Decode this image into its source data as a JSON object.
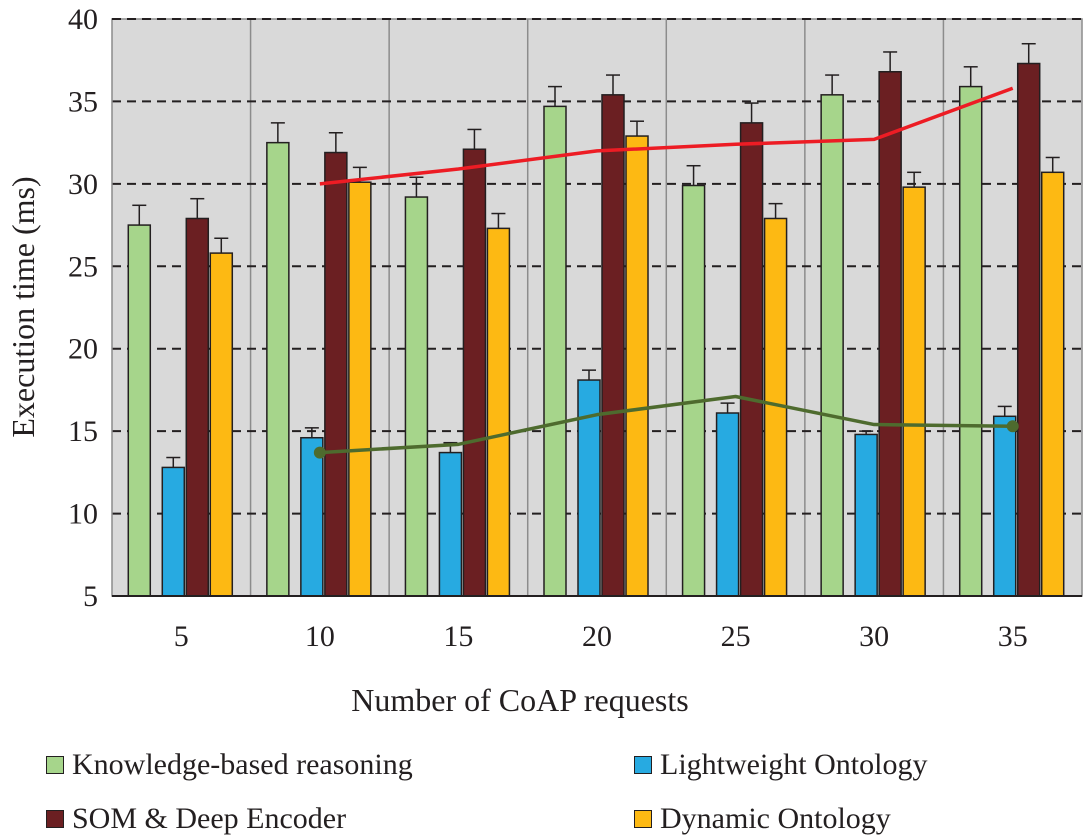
{
  "chart_data": {
    "type": "bar",
    "xlabel": "Number of CoAP requests",
    "ylabel": "Execution time (ms)",
    "ylim": [
      5,
      40
    ],
    "yticks": [
      5,
      10,
      15,
      20,
      25,
      30,
      35,
      40
    ],
    "categories": [
      "5",
      "10",
      "15",
      "20",
      "25",
      "30",
      "35"
    ],
    "grid": true,
    "legend_position": "bottom",
    "series": [
      {
        "name": "Knowledge-based reasoning",
        "color": "#a6d58b",
        "values": [
          27.5,
          32.5,
          29.2,
          34.7,
          29.9,
          35.4,
          35.9
        ],
        "errors": [
          1.2,
          1.2,
          1.2,
          1.2,
          1.2,
          1.2,
          1.2
        ]
      },
      {
        "name": "Lightweight Ontology",
        "color": "#27aae1",
        "values": [
          12.8,
          14.6,
          13.7,
          18.1,
          16.1,
          14.8,
          15.9
        ],
        "errors": [
          0.6,
          0.6,
          0.6,
          0.6,
          0.6,
          0.2,
          0.6
        ]
      },
      {
        "name": "SOM & Deep Encoder",
        "color": "#6b1f22",
        "values": [
          27.9,
          31.9,
          32.1,
          35.4,
          33.7,
          36.8,
          37.3
        ],
        "errors": [
          1.2,
          1.2,
          1.2,
          1.2,
          1.2,
          1.2,
          1.2
        ]
      },
      {
        "name": "Dynamic Ontology",
        "color": "#fdb913",
        "values": [
          25.8,
          30.1,
          27.3,
          32.9,
          27.9,
          29.8,
          30.7
        ],
        "errors": [
          0.9,
          0.9,
          0.9,
          0.9,
          0.9,
          0.9,
          0.9
        ]
      }
    ],
    "lines": [
      {
        "name": "red-trend-line",
        "color": "#ed1c24",
        "x_index": [
          1,
          2,
          3,
          4,
          5,
          6
        ],
        "values": [
          30.0,
          30.9,
          32.0,
          32.4,
          32.7,
          35.8
        ]
      },
      {
        "name": "green-trend-line",
        "color": "#4e6b2e",
        "x_index": [
          1,
          2,
          3,
          4,
          5,
          6
        ],
        "values": [
          13.7,
          14.2,
          16.0,
          17.1,
          15.4,
          15.3
        ],
        "markers": true
      }
    ]
  },
  "legend": {
    "items": [
      {
        "label": "Knowledge-based reasoning",
        "color": "#a6d58b"
      },
      {
        "label": "Lightweight Ontology",
        "color": "#27aae1"
      },
      {
        "label": "SOM & Deep Encoder",
        "color": "#6b1f22"
      },
      {
        "label": "Dynamic Ontology",
        "color": "#fdb913"
      }
    ]
  }
}
